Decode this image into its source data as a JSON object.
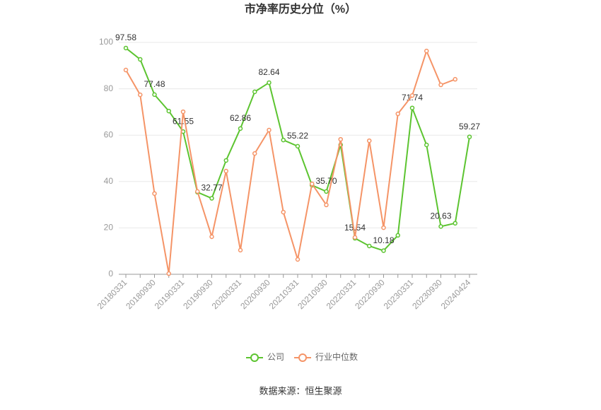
{
  "chart_data": {
    "type": "line",
    "title": "市净率历史分位（%）",
    "categories": [
      "20180331",
      null,
      "20180930",
      null,
      "20190331",
      null,
      "20190930",
      null,
      "20200331",
      null,
      "20200930",
      null,
      "20210331",
      null,
      "20210930",
      null,
      "20220331",
      null,
      "20220930",
      null,
      "20230331",
      null,
      "20230930",
      null,
      "20240424"
    ],
    "series": [
      {
        "name": "公司",
        "color": "#5cc430",
        "values": [
          97.58,
          92.7,
          77.48,
          70.4,
          61.55,
          35.4,
          32.77,
          49.1,
          62.86,
          78.7,
          82.64,
          57.9,
          55.22,
          38.4,
          35.7,
          55.8,
          15.54,
          12.2,
          10.18,
          16.8,
          71.74,
          55.8,
          20.63,
          22,
          59.27
        ],
        "value_labels": [
          "97.58",
          null,
          "77.48",
          null,
          "61.55",
          null,
          "32.77",
          null,
          "62.86",
          null,
          "82.64",
          null,
          "55.22",
          null,
          "35.70",
          null,
          "15.54",
          null,
          "10.18",
          null,
          "71.74",
          null,
          "20.63",
          null,
          "59.27"
        ]
      },
      {
        "name": "行业中位数",
        "color": "#f59467",
        "values": [
          88.1,
          77.4,
          34.8,
          0.3,
          70.1,
          35.7,
          16.2,
          44.5,
          10.4,
          52.1,
          62.2,
          26.8,
          6.4,
          39.0,
          29.9,
          58.2,
          15.9,
          57.6,
          20.1,
          69.2,
          77.1,
          96.3,
          81.7,
          84.1,
          null
        ]
      }
    ],
    "ylim": [
      0,
      100
    ],
    "yticks": [
      0,
      20,
      40,
      60,
      80,
      100
    ],
    "grid": true,
    "legend": "bottom",
    "source": "数据来源：恒生聚源"
  }
}
